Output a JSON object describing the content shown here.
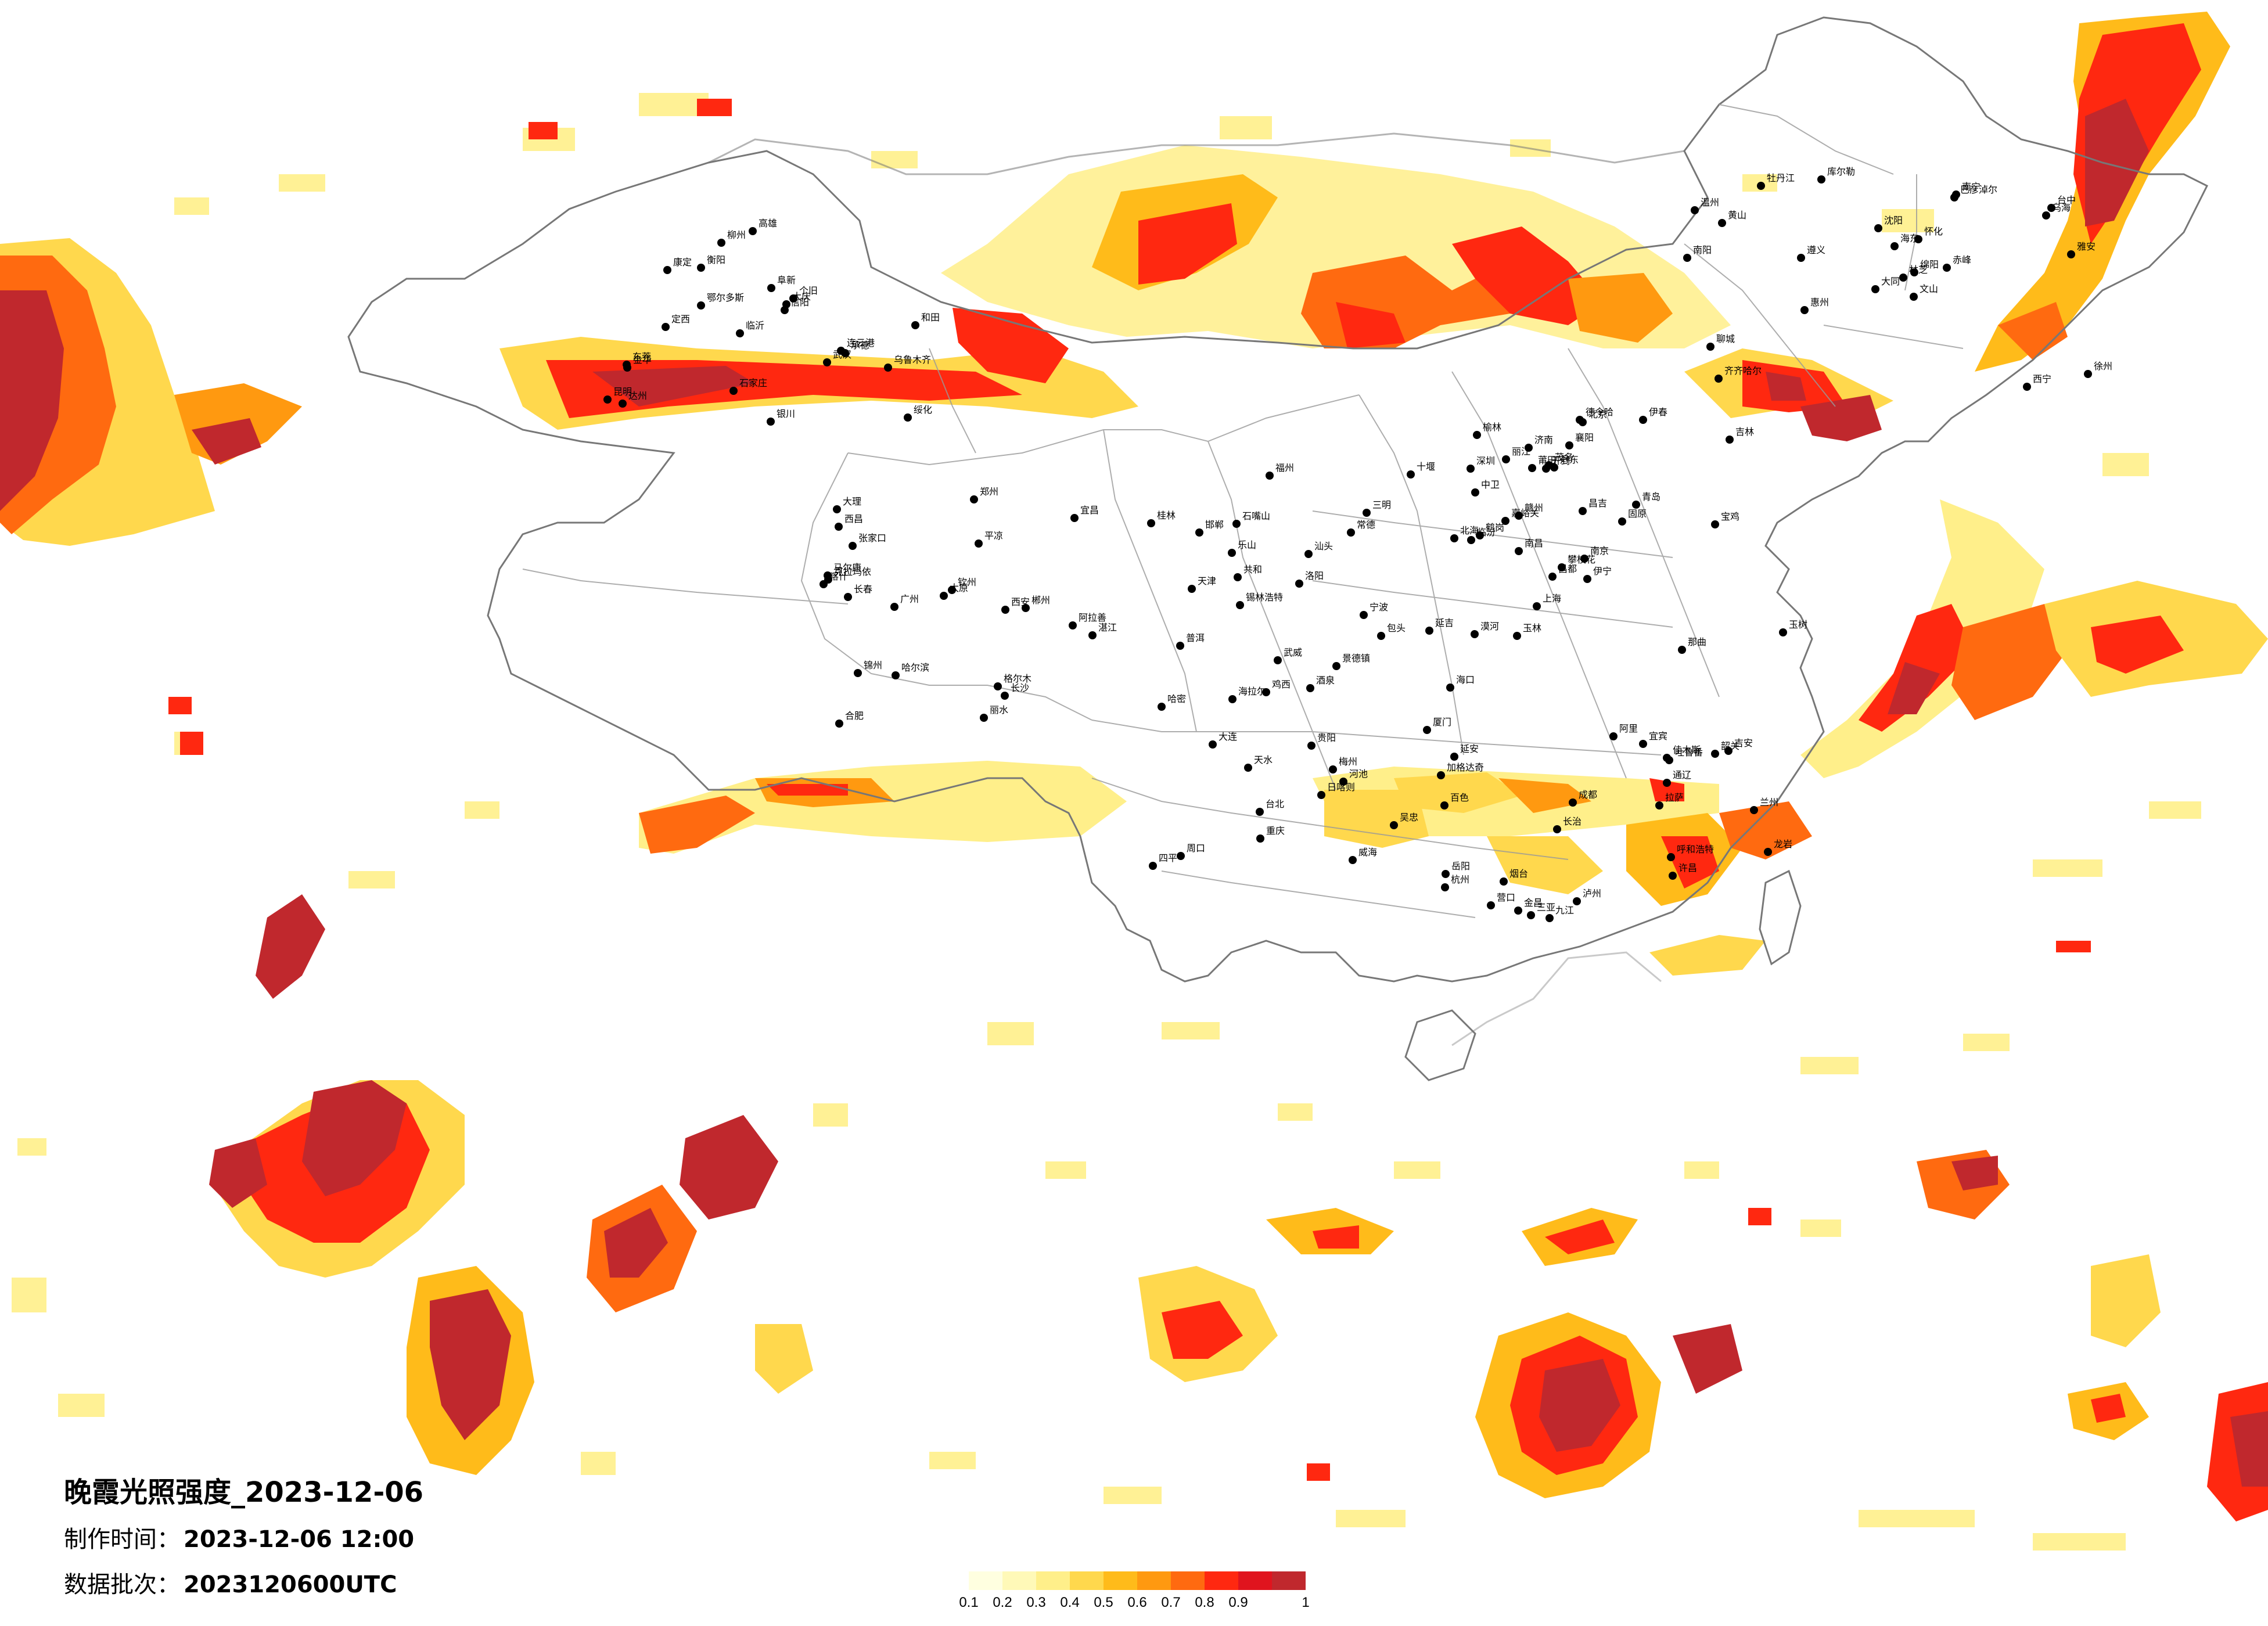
{
  "title": "晚霞光照强度_2023-12-06",
  "meta": {
    "made_label": "制作时间：",
    "made_value": "2023-12-06 12:00",
    "batch_label": "数据批次：",
    "batch_value": "2023120600UTC"
  },
  "legend": {
    "colors": [
      "#ffffe0",
      "#fff9b8",
      "#ffef8a",
      "#ffd84d",
      "#ffbb1a",
      "#ff9910",
      "#ff6a10",
      "#ff2810",
      "#e0141e",
      "#c0282d"
    ],
    "labels": [
      "0.1",
      "0.2",
      "0.3",
      "0.4",
      "0.5",
      "0.6",
      "0.7",
      "0.8",
      "0.9",
      "1"
    ]
  },
  "cities": [
    {
      "name": "漠河"
    },
    {
      "name": "加格达奇"
    },
    {
      "name": "海拉尔"
    },
    {
      "name": "齐齐哈尔"
    },
    {
      "name": "大庆"
    },
    {
      "name": "哈尔滨"
    },
    {
      "name": "伊春"
    },
    {
      "name": "鹤岗"
    },
    {
      "name": "佳木斯"
    },
    {
      "name": "鸡西"
    },
    {
      "name": "牡丹江"
    },
    {
      "name": "绥化"
    },
    {
      "name": "长春"
    },
    {
      "name": "吉林"
    },
    {
      "name": "延吉"
    },
    {
      "name": "通辽"
    },
    {
      "name": "四平"
    },
    {
      "name": "沈阳"
    },
    {
      "name": "阜新"
    },
    {
      "name": "锦州"
    },
    {
      "name": "丹东"
    },
    {
      "name": "大连"
    },
    {
      "name": "营口"
    },
    {
      "name": "锡林浩特"
    },
    {
      "name": "赤峰"
    },
    {
      "name": "承德"
    },
    {
      "name": "张家口"
    },
    {
      "name": "北京"
    },
    {
      "name": "天津"
    },
    {
      "name": "呼和浩特"
    },
    {
      "name": "包头"
    },
    {
      "name": "大同"
    },
    {
      "name": "石家庄"
    },
    {
      "name": "太原"
    },
    {
      "name": "济南"
    },
    {
      "name": "青岛"
    },
    {
      "name": "烟台"
    },
    {
      "name": "威海"
    },
    {
      "name": "徐州"
    },
    {
      "name": "连云港"
    },
    {
      "name": "郑州"
    },
    {
      "name": "开封"
    },
    {
      "name": "洛阳"
    },
    {
      "name": "许昌"
    },
    {
      "name": "周口"
    },
    {
      "name": "南阳"
    },
    {
      "name": "信阳"
    },
    {
      "name": "合肥"
    },
    {
      "name": "南京"
    },
    {
      "name": "上海"
    },
    {
      "name": "杭州"
    },
    {
      "name": "宁波"
    },
    {
      "name": "温州"
    },
    {
      "name": "武汉"
    },
    {
      "name": "长沙"
    },
    {
      "name": "南昌"
    },
    {
      "name": "福州"
    },
    {
      "name": "厦门"
    },
    {
      "name": "台北"
    },
    {
      "name": "台中"
    },
    {
      "name": "高雄"
    },
    {
      "name": "广州"
    },
    {
      "name": "深圳"
    },
    {
      "name": "汕头"
    },
    {
      "name": "韶关"
    },
    {
      "name": "桂林"
    },
    {
      "name": "南宁"
    },
    {
      "name": "柳州"
    },
    {
      "name": "钦州"
    },
    {
      "name": "北海"
    },
    {
      "name": "海口"
    },
    {
      "name": "三亚"
    },
    {
      "name": "贵阳"
    },
    {
      "name": "遵义"
    },
    {
      "name": "昆明"
    },
    {
      "name": "大理"
    },
    {
      "name": "丽江"
    },
    {
      "name": "普洱"
    },
    {
      "name": "成都"
    },
    {
      "name": "重庆"
    },
    {
      "name": "绵阳"
    },
    {
      "name": "达州"
    },
    {
      "name": "西安"
    },
    {
      "name": "宝鸡"
    },
    {
      "name": "延安"
    },
    {
      "name": "兰州"
    },
    {
      "name": "天水"
    },
    {
      "name": "西宁"
    },
    {
      "name": "银川"
    },
    {
      "name": "格尔木"
    },
    {
      "name": "德令哈"
    },
    {
      "name": "玉树"
    },
    {
      "name": "拉萨"
    },
    {
      "name": "日喀则"
    },
    {
      "name": "林芝"
    },
    {
      "name": "乌鲁木齐"
    },
    {
      "name": "克拉玛依"
    },
    {
      "name": "伊宁"
    },
    {
      "name": "昌吉"
    },
    {
      "name": "吐鲁番"
    },
    {
      "name": "哈密"
    },
    {
      "name": "库尔勒"
    },
    {
      "name": "和田"
    },
    {
      "name": "喀什"
    },
    {
      "name": "嘉峪关"
    },
    {
      "name": "酒泉"
    },
    {
      "name": "金昌"
    },
    {
      "name": "武威"
    },
    {
      "name": "乌海"
    },
    {
      "name": "鄂尔多斯"
    },
    {
      "name": "阿拉善"
    },
    {
      "name": "榆林"
    },
    {
      "name": "临汾"
    },
    {
      "name": "长治"
    },
    {
      "name": "邯郸"
    },
    {
      "name": "聊城"
    },
    {
      "name": "临沂"
    },
    {
      "name": "宜昌"
    },
    {
      "name": "襄阳"
    },
    {
      "name": "十堰"
    },
    {
      "name": "岳阳"
    },
    {
      "name": "常德"
    },
    {
      "name": "怀化"
    },
    {
      "name": "衡阳"
    },
    {
      "name": "郴州"
    },
    {
      "name": "赣州"
    },
    {
      "name": "吉安"
    },
    {
      "name": "九江"
    },
    {
      "name": "景德镇"
    },
    {
      "name": "黄山"
    },
    {
      "name": "金华"
    },
    {
      "name": "丽水"
    },
    {
      "name": "莆田"
    },
    {
      "name": "三明"
    },
    {
      "name": "龙岩"
    },
    {
      "name": "梅州"
    },
    {
      "name": "惠州"
    },
    {
      "name": "东莞"
    },
    {
      "name": "湛江"
    },
    {
      "name": "茂名"
    },
    {
      "name": "玉林"
    },
    {
      "name": "百色"
    },
    {
      "name": "河池"
    },
    {
      "name": "文山"
    },
    {
      "name": "个旧"
    },
    {
      "name": "西昌"
    },
    {
      "name": "攀枝花"
    },
    {
      "name": "宜宾"
    },
    {
      "name": "泸州"
    },
    {
      "name": "乐山"
    },
    {
      "name": "雅安"
    },
    {
      "name": "康定"
    },
    {
      "name": "马尔康"
    },
    {
      "name": "昌都"
    },
    {
      "name": "那曲"
    },
    {
      "name": "阿里"
    },
    {
      "name": "共和"
    },
    {
      "name": "海东"
    },
    {
      "name": "定西"
    },
    {
      "name": "平凉"
    },
    {
      "name": "固原"
    },
    {
      "name": "中卫"
    },
    {
      "name": "吴忠"
    },
    {
      "name": "石嘴山"
    },
    {
      "name": "巴彦淖尔"
    }
  ]
}
